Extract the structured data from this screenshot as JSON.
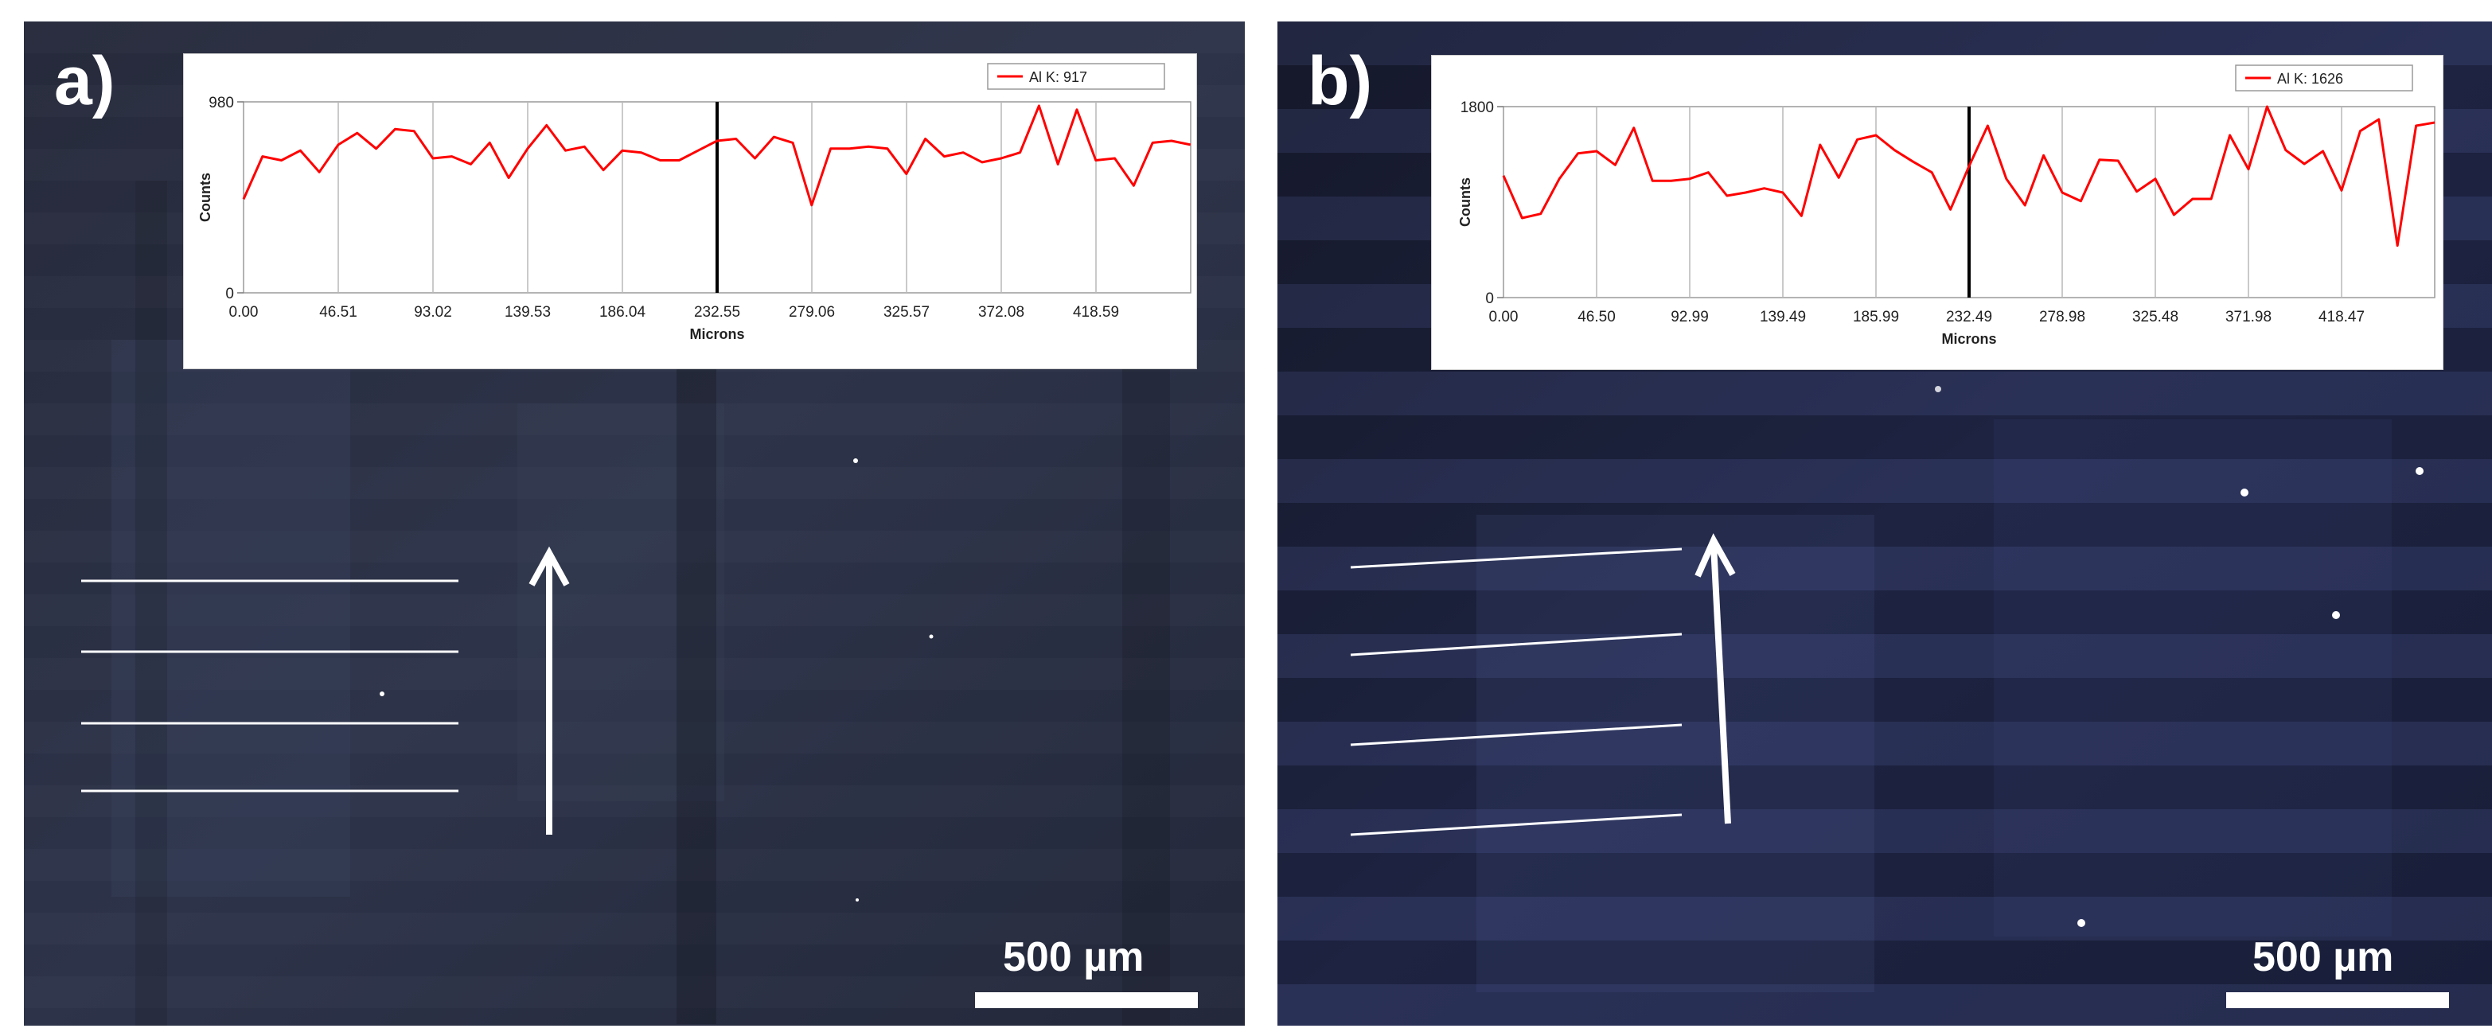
{
  "panels": [
    {
      "label": "a)",
      "scale_label": "500 µm",
      "chart_data": {
        "type": "line",
        "xlabel": "Microns",
        "ylabel": "Counts",
        "ylim": [
          0,
          980
        ],
        "ytick_labels": [
          "0",
          "980"
        ],
        "xtick_labels": [
          "0.00",
          "46.51",
          "93.02",
          "139.53",
          "186.04",
          "232.55",
          "279.06",
          "325.57",
          "372.08",
          "418.59"
        ],
        "xlim": [
          0,
          465.1
        ],
        "marker_x": 232.55,
        "grid": true,
        "legend_position": "top-right",
        "series": [
          {
            "name": "Al K: 917",
            "color": "#ff0000",
            "x": [
              0,
              9.3,
              18.6,
              27.9,
              37.2,
              46.5,
              55.8,
              65.1,
              74.4,
              83.7,
              93,
              102.3,
              111.6,
              120.9,
              130.2,
              139.5,
              148.8,
              158.1,
              167.4,
              176.7,
              186,
              195.3,
              204.6,
              213.9,
              223.2,
              232.5,
              241.8,
              251.1,
              260.4,
              269.7,
              279,
              288.3,
              297.6,
              306.9,
              316.2,
              325.5,
              334.8,
              344.1,
              353.4,
              362.7,
              372,
              381.3,
              390.6,
              399.9,
              409.2,
              418.5,
              427.8,
              437.1,
              446.4,
              455.7,
              465
            ],
            "values": [
              480,
              700,
              680,
              730,
              620,
              760,
              820,
              740,
              840,
              830,
              690,
              700,
              660,
              770,
              590,
              740,
              860,
              730,
              750,
              630,
              730,
              720,
              680,
              680,
              730,
              780,
              790,
              690,
              800,
              770,
              450,
              740,
              740,
              750,
              740,
              610,
              790,
              700,
              720,
              670,
              690,
              720,
              960,
              660,
              940,
              680,
              690,
              550,
              770,
              780,
              760
            ]
          }
        ]
      }
    },
    {
      "label": "b)",
      "scale_label": "500 µm",
      "chart_data": {
        "type": "line",
        "xlabel": "Microns",
        "ylabel": "Counts",
        "ylim": [
          0,
          1800
        ],
        "ytick_labels": [
          "0",
          "1800"
        ],
        "xtick_labels": [
          "0.00",
          "46.50",
          "92.99",
          "139.49",
          "185.99",
          "232.49",
          "278.98",
          "325.48",
          "371.98",
          "418.47"
        ],
        "xlim": [
          0,
          465.0
        ],
        "marker_x": 232.49,
        "grid": true,
        "legend_position": "top-right",
        "series": [
          {
            "name": "Al K: 1626",
            "color": "#ff0000",
            "x": [
              0,
              9.3,
              18.6,
              27.9,
              37.2,
              46.5,
              55.8,
              65.1,
              74.4,
              83.7,
              93,
              102.3,
              111.6,
              120.9,
              130.2,
              139.5,
              148.8,
              158.1,
              167.4,
              176.7,
              186,
              195.3,
              204.6,
              213.9,
              223.2,
              232.5,
              241.8,
              251.1,
              260.4,
              269.7,
              279,
              288.3,
              297.6,
              306.9,
              316.2,
              325.5,
              334.8,
              344.1,
              353.4,
              362.7,
              372,
              381.3,
              390.6,
              399.9,
              409.2,
              418.5,
              427.8,
              437.1,
              446.4,
              455.7,
              465
            ],
            "values": [
              1150,
              750,
              790,
              1120,
              1360,
              1380,
              1250,
              1600,
              1100,
              1100,
              1120,
              1180,
              960,
              990,
              1030,
              990,
              770,
              1440,
              1130,
              1490,
              1530,
              1390,
              1280,
              1180,
              830,
              1240,
              1620,
              1120,
              870,
              1340,
              990,
              910,
              1300,
              1290,
              1000,
              1120,
              780,
              930,
              930,
              1530,
              1210,
              1800,
              1390,
              1260,
              1380,
              1010,
              1570,
              1680,
              490,
              1620,
              1650
            ]
          }
        ]
      }
    }
  ]
}
